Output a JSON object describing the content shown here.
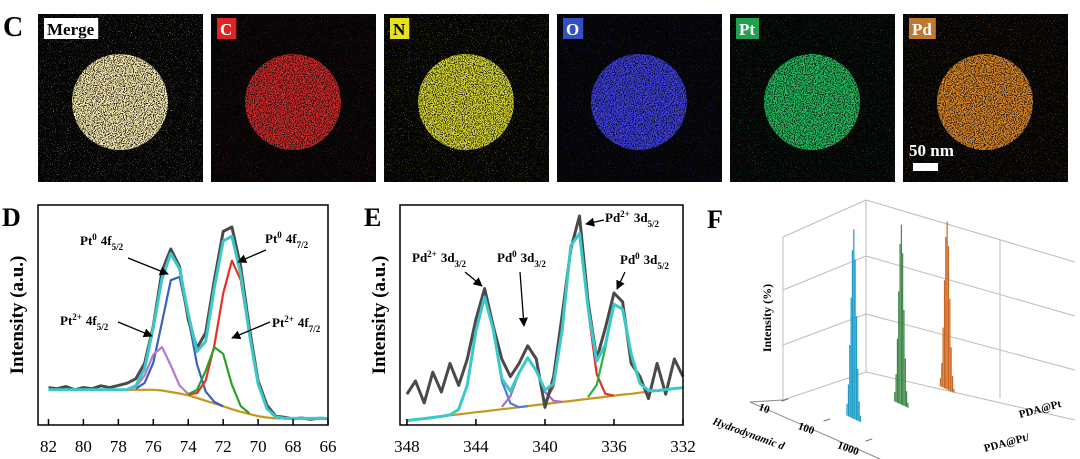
{
  "panel_c": {
    "label": "C",
    "scale_bar": "50 nm",
    "tiles": [
      {
        "label": "Merge",
        "color": "#ffffff",
        "text_color": "#000000",
        "map_color": "#fff0b4"
      },
      {
        "label": "C",
        "color": "#e02424",
        "text_color": "#ffffff",
        "map_color": "#d42a2a"
      },
      {
        "label": "N",
        "color": "#e6e020",
        "text_color": "#000000",
        "map_color": "#dcdc30"
      },
      {
        "label": "O",
        "color": "#3450c0",
        "text_color": "#ffffff",
        "map_color": "#4040e6"
      },
      {
        "label": "Pt",
        "color": "#20a050",
        "text_color": "#ffffff",
        "map_color": "#22c060"
      },
      {
        "label": "Pd",
        "color": "#c07830",
        "text_color": "#ffffff",
        "map_color": "#e08a28"
      }
    ]
  },
  "chart_data": [
    {
      "type": "line",
      "panel_label": "D",
      "ylabel": "Intensity (a.u.)",
      "xlim": [
        82.6,
        66
      ],
      "ylim": [
        0,
        100
      ],
      "xticks": [
        82,
        80,
        78,
        76,
        74,
        72,
        70,
        68,
        66
      ],
      "x": [
        82,
        81.5,
        81,
        80.5,
        80,
        79.5,
        79,
        78.5,
        78,
        77.5,
        77,
        76.5,
        76,
        75.5,
        75,
        74.5,
        74,
        73.5,
        73,
        72.5,
        72,
        71.5,
        71,
        70.5,
        70,
        69.5,
        69,
        68.5,
        68,
        67.5,
        67,
        66.5,
        66
      ],
      "series": [
        {
          "color": "#c8961e",
          "values": [
            16,
            16,
            16,
            16,
            16,
            16,
            16,
            16,
            16,
            16,
            16,
            16,
            16,
            15.7,
            15,
            14.3,
            13.5,
            12.3,
            11,
            9.8,
            8.5,
            7.2,
            6,
            5,
            4,
            3.4,
            3,
            3,
            3,
            3,
            3,
            3,
            3
          ]
        },
        {
          "color": "#3a5fbf",
          "values": [
            null,
            null,
            null,
            null,
            null,
            null,
            null,
            null,
            null,
            null,
            16.5,
            19.1,
            28.3,
            46.7,
            65.8,
            67.3,
            49.1,
            27.6,
            15.2,
            10.5,
            8.5,
            null,
            null,
            null,
            null,
            null,
            null,
            null,
            null,
            null,
            null,
            null,
            null
          ]
        },
        {
          "color": "#e8302a",
          "values": [
            null,
            null,
            null,
            null,
            null,
            null,
            null,
            null,
            null,
            null,
            null,
            null,
            null,
            null,
            null,
            null,
            13.8,
            14.5,
            20.2,
            36.3,
            59.8,
            74.7,
            66,
            41.1,
            18.7,
            7.5,
            3.7,
            null,
            null,
            null,
            null,
            null,
            null
          ]
        },
        {
          "color": "#b07cd0",
          "values": [
            null,
            null,
            null,
            null,
            null,
            null,
            null,
            null,
            null,
            16.1,
            17.3,
            22.5,
            32,
            35.4,
            27.1,
            18,
            14.1,
            null,
            null,
            null,
            null,
            null,
            null,
            null,
            null,
            null,
            null,
            null,
            null,
            null,
            null,
            null,
            null
          ]
        },
        {
          "color": "#2ca02c",
          "values": [
            null,
            null,
            null,
            null,
            null,
            null,
            null,
            null,
            null,
            null,
            null,
            null,
            null,
            null,
            null,
            null,
            14,
            15.9,
            24.7,
            35.3,
            32.3,
            18.3,
            8.6,
            5.3,
            null,
            null,
            null,
            null,
            null,
            null,
            null,
            null,
            null
          ]
        },
        {
          "color": "#4a4a4a",
          "values": [
            17,
            16.5,
            17.5,
            16,
            17,
            16.5,
            17.8,
            17,
            18,
            19,
            21,
            28,
            45,
            70,
            80,
            72,
            48,
            35,
            42,
            66,
            88,
            90,
            72,
            44,
            20,
            9,
            4,
            3.5,
            2.8,
            3.2,
            2.6,
            3.1,
            2.9
          ]
        },
        {
          "color": "#3cc8c8",
          "values": [
            16,
            16,
            16,
            16,
            16,
            16,
            16,
            16,
            16,
            16.1,
            17.8,
            25.6,
            44.3,
            66.4,
            77.9,
            71.0,
            50.5,
            33.4,
            38.1,
            62.5,
            83.6,
            85.8,
            68.6,
            41.4,
            18.7,
            7.5,
            3.7,
            3,
            3,
            3,
            3,
            3,
            3
          ]
        }
      ],
      "annotations": [
        {
          "base": "Pt",
          "sup": "0",
          "level": "4f",
          "sub": "5/2"
        },
        {
          "base": "Pt",
          "sup": "0",
          "level": "4f",
          "sub": "7/2"
        },
        {
          "base": "Pt",
          "sup": "2+",
          "level": "4f",
          "sub": "5/2"
        },
        {
          "base": "Pt",
          "sup": "2+",
          "level": "4f",
          "sub": "7/2"
        }
      ]
    },
    {
      "type": "line",
      "panel_label": "E",
      "ylabel": "Intensity (a.u.)",
      "xlim": [
        348.4,
        332
      ],
      "ylim": [
        0,
        100
      ],
      "xticks": [
        348,
        344,
        340,
        336,
        332
      ],
      "x": [
        348,
        347.5,
        347,
        346.5,
        346,
        345.5,
        345,
        344.5,
        344,
        343.5,
        343,
        342.5,
        342,
        341.5,
        341,
        340.5,
        340,
        339.5,
        339,
        338.5,
        338,
        337.5,
        337,
        336.5,
        336,
        335.5,
        335,
        334.5,
        334,
        333.5,
        333,
        332.5,
        332
      ],
      "series": [
        {
          "color": "#c8961e",
          "values": [
            2,
            2.5,
            2.9,
            3.4,
            3.9,
            4.4,
            4.8,
            5.3,
            5.8,
            6.2,
            6.7,
            7.2,
            7.6,
            8.1,
            8.6,
            9.1,
            9.5,
            10,
            10.5,
            10.9,
            11.4,
            11.9,
            12.3,
            12.8,
            13.3,
            13.8,
            14.2,
            14.7,
            15.2,
            15.6,
            16.1,
            16.6,
            17
          ]
        },
        {
          "color": "#4a7fd0",
          "values": [
            null,
            null,
            null,
            null,
            3.9,
            4.6,
            7.1,
            18.2,
            42.6,
            58.2,
            43.5,
            20.1,
            9.9,
            8.1,
            8.6,
            null,
            null,
            null,
            null,
            null,
            null,
            null,
            null,
            null,
            null,
            null,
            null,
            null,
            null,
            null,
            null,
            null,
            null
          ]
        },
        {
          "color": "#9b6fd0",
          "values": [
            null,
            null,
            null,
            null,
            null,
            null,
            null,
            null,
            null,
            null,
            null,
            8.2,
            13.1,
            23.7,
            30.6,
            24.7,
            15,
            11,
            10.5,
            null,
            null,
            null,
            null,
            null,
            null,
            null,
            null,
            null,
            null,
            null,
            null,
            null,
            null
          ]
        },
        {
          "color": "#e03030",
          "values": [
            null,
            null,
            null,
            null,
            null,
            null,
            null,
            null,
            null,
            null,
            null,
            null,
            null,
            null,
            null,
            null,
            10.4,
            17.7,
            43.4,
            81.5,
            87.1,
            52.5,
            23.1,
            14.2,
            13.3,
            null,
            null,
            null,
            null,
            null,
            null,
            null,
            null
          ]
        },
        {
          "color": "#30b040",
          "values": [
            null,
            null,
            null,
            null,
            null,
            null,
            null,
            null,
            null,
            null,
            null,
            null,
            null,
            null,
            null,
            null,
            null,
            null,
            null,
            null,
            null,
            12.7,
            18.2,
            35.1,
            54.9,
            52.6,
            32.3,
            18.9,
            15.7,
            15.6,
            null,
            null,
            null
          ]
        },
        {
          "color": "#4a4a4a",
          "values": [
            14,
            20,
            10,
            24,
            15,
            28,
            18,
            30,
            48,
            62,
            45,
            30,
            22,
            28,
            36,
            30,
            8,
            22,
            50,
            80,
            95,
            56,
            30,
            44,
            60,
            56,
            28,
            22,
            12,
            28,
            14,
            30,
            22
          ]
        },
        {
          "color": "#3cc8c8",
          "values": [
            2,
            2.5,
            2.9,
            3.4,
            3.9,
            4.6,
            7.1,
            18.2,
            42.6,
            58.2,
            43.5,
            21.1,
            15.4,
            23.7,
            30.6,
            24.7,
            15.9,
            18.7,
            43.4,
            81.5,
            87.1,
            53.3,
            29,
            36.5,
            54.9,
            52.6,
            32.3,
            18.9,
            15.7,
            15.6,
            16.1,
            16.6,
            17
          ]
        }
      ],
      "annotations": [
        {
          "base": "Pd",
          "sup": "2+",
          "level": "3d",
          "sub": "3/2"
        },
        {
          "base": "Pd",
          "sup": "0",
          "level": "3d",
          "sub": "3/2"
        },
        {
          "base": "Pd",
          "sup": "2+",
          "level": "3d",
          "sub": "5/2"
        },
        {
          "base": "Pd",
          "sup": "0",
          "level": "3d",
          "sub": "5/2"
        }
      ]
    },
    {
      "type": "bar3d",
      "panel_label": "F",
      "ylabel": "Intensity (%)",
      "xlabel": "Hydrodynamic d",
      "xscale": "log",
      "xticks": [
        10,
        100,
        1000
      ],
      "ylim": [
        0,
        25
      ],
      "series": [
        {
          "color": "#1f9bc8",
          "x": [
            122,
            132,
            142,
            153,
            164,
            177,
            190,
            205,
            220,
            237,
            255
          ],
          "values": [
            1.5,
            4,
            9,
            15,
            21,
            23.7,
            20,
            13,
            6.5,
            2.5,
            0.8
          ]
        },
        {
          "name": "PDA@Pt/",
          "color": "#2e7d3a",
          "x": [
            150,
            161,
            173,
            186,
            200,
            215,
            231,
            248,
            267,
            287,
            308
          ],
          "values": [
            1.2,
            3.5,
            8,
            14,
            20,
            22.5,
            19,
            12,
            6,
            2,
            0.6
          ]
        },
        {
          "name": "PDA@Pt",
          "color": "#c8641e",
          "x": [
            164,
            177,
            190,
            205,
            220,
            237,
            255,
            275,
            295,
            318,
            342
          ],
          "values": [
            1,
            3,
            7.5,
            13.5,
            19,
            21,
            18,
            11.5,
            5.5,
            2,
            0.5
          ]
        }
      ]
    }
  ]
}
